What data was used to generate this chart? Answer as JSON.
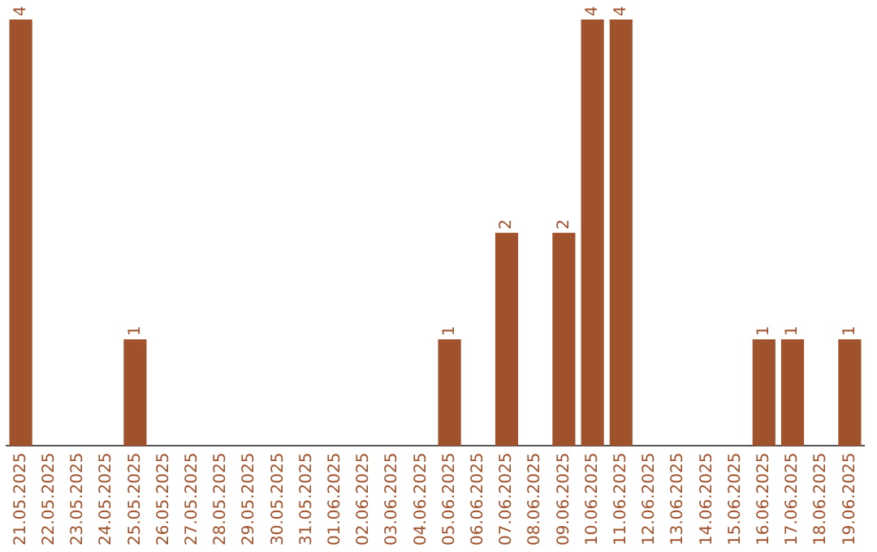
{
  "chart_data": {
    "type": "bar",
    "categories": [
      "21.05.2025",
      "22.05.2025",
      "23.05.2025",
      "24.05.2025",
      "25.05.2025",
      "26.05.2025",
      "27.05.2025",
      "28.05.2025",
      "29.05.2025",
      "30.05.2025",
      "31.05.2025",
      "01.06.2025",
      "02.06.2025",
      "03.06.2025",
      "04.06.2025",
      "05.06.2025",
      "06.06.2025",
      "07.06.2025",
      "08.06.2025",
      "09.06.2025",
      "10.06.2025",
      "11.06.2025",
      "12.06.2025",
      "13.06.2025",
      "14.06.2025",
      "15.06.2025",
      "16.06.2025",
      "17.06.2025",
      "18.06.2025",
      "19.06.2025"
    ],
    "values": [
      4,
      0,
      0,
      0,
      1,
      0,
      0,
      0,
      0,
      0,
      0,
      0,
      0,
      0,
      0,
      1,
      0,
      2,
      0,
      2,
      4,
      4,
      0,
      0,
      0,
      0,
      1,
      1,
      0,
      1
    ],
    "value_labels": [
      "4",
      null,
      null,
      null,
      "1",
      null,
      null,
      null,
      null,
      null,
      null,
      null,
      null,
      null,
      null,
      "1",
      null,
      "2",
      null,
      "2",
      "4",
      "4",
      null,
      null,
      null,
      null,
      "1",
      "1",
      null,
      "1"
    ],
    "color": "#a0522d",
    "tick_labels": "x",
    "grid": false,
    "legend": false
  }
}
